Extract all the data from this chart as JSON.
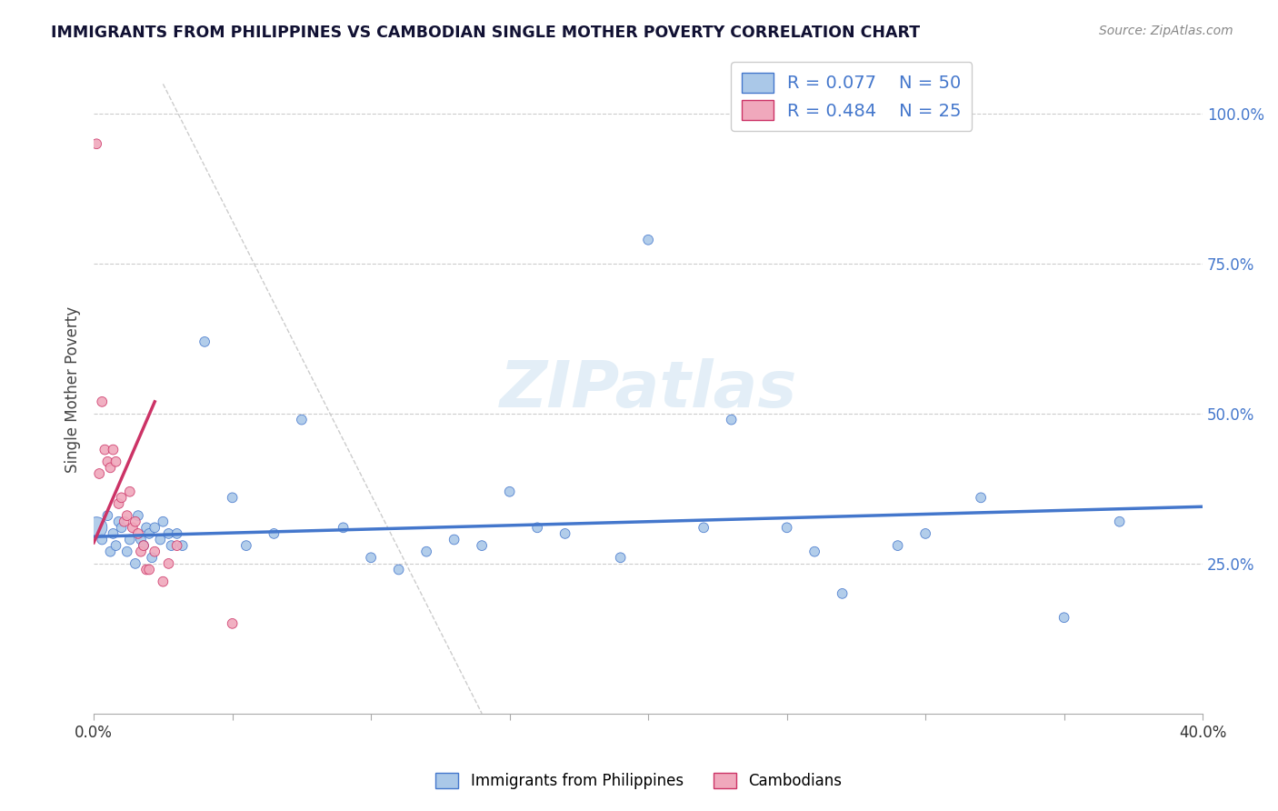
{
  "title": "IMMIGRANTS FROM PHILIPPINES VS CAMBODIAN SINGLE MOTHER POVERTY CORRELATION CHART",
  "source": "Source: ZipAtlas.com",
  "ylabel": "Single Mother Poverty",
  "xlim": [
    0.0,
    0.4
  ],
  "ylim": [
    0.0,
    1.08
  ],
  "ytick_positions": [
    0.25,
    0.5,
    0.75,
    1.0
  ],
  "yticklabels": [
    "25.0%",
    "50.0%",
    "75.0%",
    "100.0%"
  ],
  "legend_label1": "Immigrants from Philippines",
  "legend_label2": "Cambodians",
  "R1": 0.077,
  "N1": 50,
  "R2": 0.484,
  "N2": 25,
  "color1": "#aac8e8",
  "color2": "#f0a8bc",
  "line_color1": "#4477cc",
  "line_color2": "#cc3366",
  "watermark": "ZIPatlas",
  "philippines_x": [
    0.001,
    0.003,
    0.005,
    0.006,
    0.007,
    0.008,
    0.009,
    0.01,
    0.012,
    0.013,
    0.015,
    0.016,
    0.017,
    0.018,
    0.019,
    0.02,
    0.021,
    0.022,
    0.024,
    0.025,
    0.027,
    0.028,
    0.03,
    0.032,
    0.04,
    0.05,
    0.055,
    0.065,
    0.075,
    0.09,
    0.1,
    0.11,
    0.12,
    0.13,
    0.14,
    0.15,
    0.16,
    0.17,
    0.19,
    0.2,
    0.22,
    0.23,
    0.25,
    0.26,
    0.27,
    0.29,
    0.3,
    0.32,
    0.35,
    0.37
  ],
  "philippines_y": [
    0.31,
    0.29,
    0.33,
    0.27,
    0.3,
    0.28,
    0.32,
    0.31,
    0.27,
    0.29,
    0.25,
    0.33,
    0.29,
    0.28,
    0.31,
    0.3,
    0.26,
    0.31,
    0.29,
    0.32,
    0.3,
    0.28,
    0.3,
    0.28,
    0.62,
    0.36,
    0.28,
    0.3,
    0.49,
    0.31,
    0.26,
    0.24,
    0.27,
    0.29,
    0.28,
    0.37,
    0.31,
    0.3,
    0.26,
    0.79,
    0.31,
    0.49,
    0.31,
    0.27,
    0.2,
    0.28,
    0.3,
    0.36,
    0.16,
    0.32
  ],
  "philippines_sizes": [
    280,
    60,
    60,
    60,
    60,
    60,
    60,
    60,
    60,
    60,
    60,
    60,
    60,
    60,
    60,
    60,
    60,
    60,
    60,
    60,
    60,
    60,
    60,
    60,
    60,
    60,
    60,
    60,
    60,
    60,
    60,
    60,
    60,
    60,
    60,
    60,
    60,
    60,
    60,
    60,
    60,
    60,
    60,
    60,
    60,
    60,
    60,
    60,
    60,
    60
  ],
  "cambodian_x": [
    0.001,
    0.002,
    0.003,
    0.004,
    0.005,
    0.006,
    0.007,
    0.008,
    0.009,
    0.01,
    0.011,
    0.012,
    0.013,
    0.014,
    0.015,
    0.016,
    0.017,
    0.018,
    0.019,
    0.02,
    0.022,
    0.025,
    0.027,
    0.03,
    0.05
  ],
  "cambodian_y": [
    0.95,
    0.4,
    0.52,
    0.44,
    0.42,
    0.41,
    0.44,
    0.42,
    0.35,
    0.36,
    0.32,
    0.33,
    0.37,
    0.31,
    0.32,
    0.3,
    0.27,
    0.28,
    0.24,
    0.24,
    0.27,
    0.22,
    0.25,
    0.28,
    0.15
  ],
  "cambodian_sizes": [
    60,
    60,
    60,
    60,
    60,
    60,
    60,
    60,
    60,
    60,
    60,
    60,
    60,
    60,
    60,
    60,
    60,
    60,
    60,
    60,
    60,
    60,
    60,
    60,
    60
  ],
  "trend_line1_x": [
    0.0,
    0.4
  ],
  "trend_line1_y": [
    0.295,
    0.345
  ],
  "trend_line2_x": [
    0.0,
    0.022
  ],
  "trend_line2_y": [
    0.285,
    0.52
  ]
}
